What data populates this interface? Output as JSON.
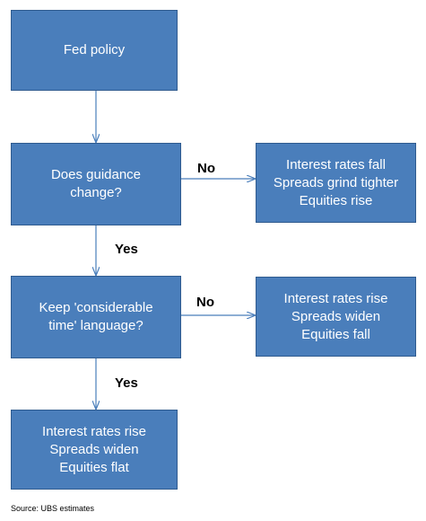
{
  "nodes": {
    "fed_policy": {
      "lines": [
        "Fed policy"
      ]
    },
    "guidance_change": {
      "lines": [
        "Does guidance",
        "change?"
      ]
    },
    "outcome_no_change": {
      "lines": [
        "Interest rates fall",
        "Spreads grind tighter",
        "Equities rise"
      ]
    },
    "keep_language": {
      "lines": [
        "Keep 'considerable",
        "time' language?"
      ]
    },
    "outcome_drop_language": {
      "lines": [
        "Interest rates rise",
        "Spreads widen",
        "Equities fall"
      ]
    },
    "outcome_keep_language": {
      "lines": [
        "Interest rates rise",
        "Spreads widen",
        "Equities flat"
      ]
    }
  },
  "edge_labels": {
    "no_1": "No",
    "yes_1": "Yes",
    "no_2": "No",
    "yes_2": "Yes"
  },
  "source": "Source: UBS estimates",
  "colors": {
    "box_fill": "#4a7ebb",
    "box_border": "#2f5b8f",
    "connector": "#4a7ebb"
  }
}
